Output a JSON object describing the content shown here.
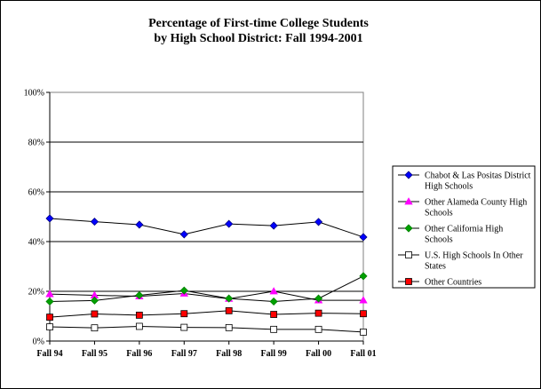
{
  "chart_data": {
    "type": "line",
    "title": "Percentage of First-time College Students\nby High School District: Fall 1994-2001",
    "title_lines": [
      "Percentage of First-time College Students",
      "by High School District: Fall 1994-2001"
    ],
    "xlabel": "",
    "ylabel": "",
    "categories": [
      "Fall 94",
      "Fall 95",
      "Fall 96",
      "Fall 97",
      "Fall 98",
      "Fall 99",
      "Fall 00",
      "Fall 01"
    ],
    "ylim": [
      0,
      100
    ],
    "yticks": [
      0,
      20,
      40,
      60,
      80,
      100
    ],
    "ytick_labels": [
      "0%",
      "20%",
      "40%",
      "60%",
      "80%",
      "100%"
    ],
    "grid": true,
    "legend_position": "right",
    "series": [
      {
        "name": "Chabot & Las Positas District High Schools",
        "legend_lines": [
          "Chabot & Las Positas District",
          "High Schools"
        ],
        "color": "#000080",
        "marker_color": "#0000ff",
        "marker": "diamond",
        "values": [
          49.3,
          48,
          46.8,
          42.9,
          47.1,
          46.4,
          47.9,
          41.8
        ]
      },
      {
        "name": "Other Alameda County High Schools",
        "legend_lines": [
          "Other Alameda County High",
          "Schools"
        ],
        "color": "#ff00ff",
        "marker_color": "#ff00ff",
        "marker": "triangle",
        "values": [
          18.9,
          18.4,
          18,
          19.1,
          17,
          20,
          16.4,
          16.4
        ]
      },
      {
        "name": "Other California High Schools",
        "legend_lines": [
          "Other California High",
          "Schools"
        ],
        "color": "#008000",
        "marker_color": "#00a000",
        "marker": "diamond",
        "values": [
          15.9,
          16.3,
          18.4,
          20.3,
          17.1,
          15.9,
          17.1,
          26.1
        ]
      },
      {
        "name": "U.S. High Schools In Other States",
        "legend_lines": [
          "U.S. High Schools In Other",
          "States"
        ],
        "color": "#008080",
        "marker_color": "#ffffff",
        "marker": "square",
        "values": [
          5.7,
          5.3,
          5.9,
          5.5,
          5.4,
          4.7,
          4.7,
          3.6
        ]
      },
      {
        "name": "Other Countries",
        "legend_lines": [
          "Other Countries"
        ],
        "color": "#ff0000",
        "marker_color": "#ff0000",
        "marker": "square",
        "values": [
          9.6,
          10.9,
          10.4,
          11,
          12.2,
          10.7,
          11.2,
          11
        ]
      }
    ]
  }
}
